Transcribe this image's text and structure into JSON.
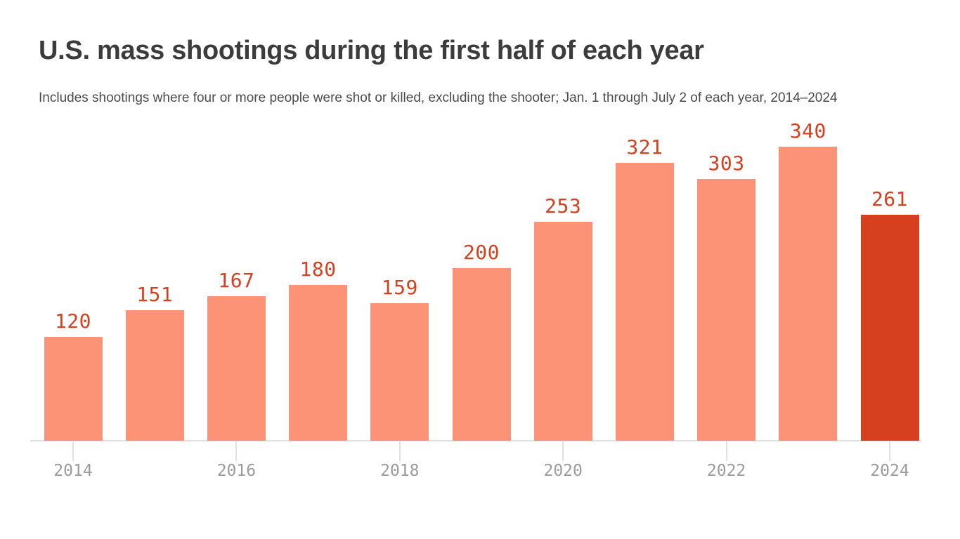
{
  "header": {
    "title": "U.S. mass shootings during the first half of each year",
    "subtitle": "Includes shootings where four or more people were shot or killed, excluding the shooter; Jan. 1 through July 2 of each year, 2014–2024"
  },
  "chart_data": {
    "type": "bar",
    "title": "U.S. mass shootings during the first half of each year",
    "subtitle": "Includes shootings where four or more people were shot or killed, excluding the shooter; Jan. 1 through July 2 of each year, 2014–2024",
    "categories": [
      "2014",
      "2015",
      "2016",
      "2017",
      "2018",
      "2019",
      "2020",
      "2021",
      "2022",
      "2023",
      "2024"
    ],
    "values": [
      120,
      151,
      167,
      180,
      159,
      200,
      253,
      321,
      303,
      340,
      261
    ],
    "data_labels": [
      "120",
      "151",
      "167",
      "180",
      "159",
      "200",
      "253",
      "321",
      "303",
      "340",
      "261"
    ],
    "x_tick_labels": [
      "2014",
      "2016",
      "2018",
      "2020",
      "2022",
      "2024"
    ],
    "xlabel": "",
    "ylabel": "",
    "ylim": [
      0,
      340
    ],
    "grid": "off",
    "legend": "none",
    "highlight_category": "2024",
    "highlight_index": 10,
    "colors": {
      "bar": "#FC9377",
      "highlight_bar": "#D6401E",
      "data_label": "#D6401E",
      "axis_line": "#E0E0E0",
      "tick_label": "#9B9B9B",
      "title": "#3C3C3C",
      "subtitle": "#4B4B4B",
      "background": "#FFFFFF"
    }
  }
}
